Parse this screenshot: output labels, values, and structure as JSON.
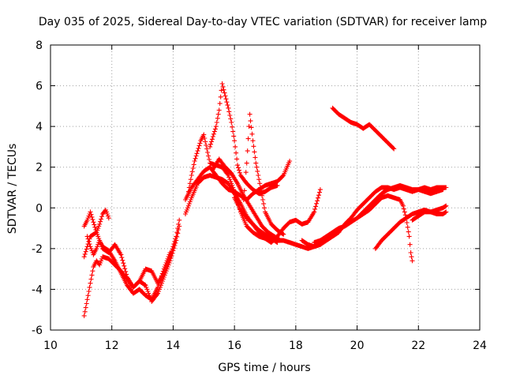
{
  "chart_data": {
    "type": "scatter",
    "title": "Day 035 of 2025, Sidereal Day-to-day VTEC variation (SDTVAR) for receiver lamp",
    "xlabel": "GPS time / hours",
    "ylabel": "SDTVAR / TECUs",
    "xlim": [
      10,
      24
    ],
    "ylim": [
      -6,
      8
    ],
    "x_ticks": [
      "10",
      "12",
      "14",
      "16",
      "18",
      "20",
      "22",
      "24"
    ],
    "y_ticks": [
      "-6",
      "-4",
      "-2",
      "0",
      "2",
      "4",
      "6",
      "8"
    ],
    "grid": true,
    "marker": "plus",
    "color": "#ff0000",
    "series": [
      {
        "name": "track-1",
        "points": [
          [
            11.1,
            -2.4
          ],
          [
            11.3,
            -1.4
          ],
          [
            11.5,
            -1.2
          ],
          [
            11.7,
            -2.0
          ],
          [
            11.9,
            -2.2
          ],
          [
            12.1,
            -1.8
          ],
          [
            12.3,
            -2.3
          ],
          [
            12.5,
            -3.4
          ],
          [
            12.7,
            -3.9
          ],
          [
            12.9,
            -3.6
          ],
          [
            13.1,
            -3.0
          ],
          [
            13.3,
            -3.1
          ],
          [
            13.5,
            -3.7
          ],
          [
            13.7,
            -3.2
          ],
          [
            13.9,
            -2.4
          ],
          [
            14.1,
            -1.4
          ],
          [
            14.2,
            -0.6
          ]
        ]
      },
      {
        "name": "track-2",
        "points": [
          [
            11.1,
            -5.3
          ],
          [
            11.2,
            -4.5
          ],
          [
            11.3,
            -3.7
          ],
          [
            11.4,
            -2.9
          ],
          [
            11.5,
            -2.6
          ],
          [
            11.6,
            -2.8
          ],
          [
            11.7,
            -2.4
          ],
          [
            11.9,
            -2.5
          ],
          [
            12.1,
            -2.8
          ],
          [
            12.3,
            -3.1
          ],
          [
            12.5,
            -3.5
          ],
          [
            12.7,
            -3.9
          ],
          [
            12.9,
            -3.6
          ],
          [
            13.1,
            -3.8
          ],
          [
            13.3,
            -4.6
          ],
          [
            13.5,
            -4.2
          ],
          [
            13.7,
            -3.4
          ],
          [
            13.9,
            -2.6
          ],
          [
            14.1,
            -1.6
          ],
          [
            14.2,
            -0.9
          ]
        ]
      },
      {
        "name": "track-3",
        "points": [
          [
            11.1,
            -0.9
          ],
          [
            11.2,
            -0.6
          ],
          [
            11.3,
            -0.2
          ],
          [
            11.4,
            -0.7
          ],
          [
            11.5,
            -1.2
          ],
          [
            11.6,
            -0.8
          ],
          [
            11.7,
            -0.3
          ],
          [
            11.8,
            -0.1
          ],
          [
            11.9,
            -0.5
          ]
        ]
      },
      {
        "name": "track-4",
        "points": [
          [
            11.2,
            -1.4
          ],
          [
            11.3,
            -1.9
          ],
          [
            11.4,
            -2.3
          ],
          [
            11.5,
            -2.0
          ],
          [
            11.6,
            -1.6
          ],
          [
            11.7,
            -1.9
          ],
          [
            11.9,
            -2.1
          ],
          [
            12.1,
            -2.6
          ],
          [
            12.3,
            -3.2
          ],
          [
            12.5,
            -3.8
          ],
          [
            12.7,
            -4.2
          ],
          [
            12.9,
            -4.0
          ],
          [
            13.1,
            -4.3
          ],
          [
            13.3,
            -4.5
          ],
          [
            13.5,
            -3.9
          ],
          [
            13.7,
            -3.0
          ],
          [
            13.9,
            -2.2
          ]
        ]
      },
      {
        "name": "track-5",
        "points": [
          [
            14.4,
            0.4
          ],
          [
            14.6,
            1.0
          ],
          [
            14.8,
            1.4
          ],
          [
            15.0,
            1.8
          ],
          [
            15.2,
            2.0
          ],
          [
            15.4,
            1.6
          ],
          [
            15.6,
            1.2
          ],
          [
            15.8,
            0.9
          ],
          [
            16.0,
            0.8
          ],
          [
            16.2,
            0.6
          ],
          [
            16.4,
            0.4
          ],
          [
            16.6,
            0.7
          ],
          [
            16.8,
            0.9
          ],
          [
            17.0,
            1.1
          ],
          [
            17.2,
            1.2
          ],
          [
            17.4,
            1.3
          ],
          [
            17.6,
            1.6
          ],
          [
            17.8,
            2.3
          ]
        ]
      },
      {
        "name": "track-6",
        "points": [
          [
            14.4,
            -0.3
          ],
          [
            14.6,
            0.5
          ],
          [
            14.8,
            1.2
          ],
          [
            15.0,
            1.5
          ],
          [
            15.2,
            1.6
          ],
          [
            15.4,
            1.5
          ],
          [
            15.6,
            1.4
          ],
          [
            15.8,
            1.2
          ],
          [
            16.0,
            0.7
          ],
          [
            16.2,
            0.2
          ],
          [
            16.4,
            -0.4
          ],
          [
            16.6,
            -0.8
          ],
          [
            16.8,
            -1.2
          ],
          [
            17.0,
            -1.5
          ],
          [
            17.2,
            -1.7
          ],
          [
            17.4,
            -1.4
          ],
          [
            17.6,
            -1.0
          ],
          [
            17.8,
            -0.7
          ],
          [
            18.0,
            -0.6
          ],
          [
            18.2,
            -0.8
          ],
          [
            18.4,
            -0.7
          ],
          [
            18.6,
            -0.2
          ],
          [
            18.8,
            0.9
          ]
        ]
      },
      {
        "name": "track-7",
        "points": [
          [
            14.5,
            0.8
          ],
          [
            14.6,
            1.6
          ],
          [
            14.7,
            2.3
          ],
          [
            14.8,
            2.8
          ],
          [
            14.9,
            3.3
          ],
          [
            15.0,
            3.6
          ],
          [
            15.1,
            2.9
          ],
          [
            15.2,
            2.2
          ],
          [
            15.4,
            2.1
          ],
          [
            15.6,
            2.0
          ],
          [
            15.8,
            1.6
          ],
          [
            16.0,
            0.8
          ],
          [
            16.2,
            -0.2
          ],
          [
            16.4,
            -0.9
          ],
          [
            16.6,
            -1.2
          ],
          [
            16.8,
            -1.4
          ],
          [
            17.0,
            -1.5
          ],
          [
            17.2,
            -1.6
          ],
          [
            17.4,
            -1.6
          ],
          [
            17.6,
            -1.6
          ],
          [
            17.8,
            -1.7
          ],
          [
            18.0,
            -1.8
          ],
          [
            18.2,
            -1.9
          ],
          [
            18.4,
            -2.0
          ],
          [
            18.6,
            -1.9
          ],
          [
            18.8,
            -1.8
          ]
        ]
      },
      {
        "name": "track-8",
        "points": [
          [
            15.2,
            3.0
          ],
          [
            15.4,
            4.0
          ],
          [
            15.5,
            4.8
          ],
          [
            15.6,
            6.1
          ],
          [
            15.7,
            5.5
          ],
          [
            15.8,
            4.9
          ],
          [
            15.9,
            4.2
          ],
          [
            16.0,
            3.3
          ],
          [
            16.1,
            2.1
          ],
          [
            16.2,
            1.6
          ],
          [
            16.4,
            1.2
          ],
          [
            16.6,
            0.9
          ],
          [
            16.8,
            0.7
          ],
          [
            17.0,
            0.8
          ],
          [
            17.2,
            1.0
          ],
          [
            17.4,
            1.1
          ]
        ]
      },
      {
        "name": "track-9",
        "points": [
          [
            15.3,
            1.9
          ],
          [
            15.5,
            2.4
          ],
          [
            15.7,
            2.0
          ],
          [
            15.9,
            1.7
          ],
          [
            16.1,
            1.2
          ],
          [
            16.3,
            0.6
          ],
          [
            16.5,
            0.1
          ],
          [
            16.7,
            -0.4
          ],
          [
            16.9,
            -0.9
          ],
          [
            17.1,
            -1.2
          ],
          [
            17.3,
            -1.4
          ],
          [
            17.5,
            -1.6
          ]
        ]
      },
      {
        "name": "track-10",
        "points": [
          [
            16.3,
            0.4
          ],
          [
            16.4,
            2.2
          ],
          [
            16.5,
            4.6
          ],
          [
            16.6,
            3.3
          ],
          [
            16.7,
            2.2
          ],
          [
            16.8,
            1.4
          ],
          [
            16.9,
            0.6
          ],
          [
            17.0,
            -0.2
          ],
          [
            17.2,
            -0.8
          ],
          [
            17.4,
            -1.1
          ],
          [
            17.6,
            -1.3
          ]
        ]
      },
      {
        "name": "track-11",
        "points": [
          [
            16.0,
            0.5
          ],
          [
            16.2,
            -0.1
          ],
          [
            16.4,
            -0.5
          ],
          [
            16.6,
            -0.8
          ],
          [
            16.8,
            -1.1
          ],
          [
            17.0,
            -1.3
          ],
          [
            17.2,
            -1.5
          ],
          [
            17.4,
            -1.7
          ]
        ]
      },
      {
        "name": "track-12",
        "points": [
          [
            18.2,
            -1.6
          ],
          [
            18.4,
            -1.8
          ],
          [
            18.6,
            -1.9
          ],
          [
            18.8,
            -1.8
          ],
          [
            19.0,
            -1.6
          ],
          [
            19.2,
            -1.4
          ],
          [
            19.4,
            -1.2
          ],
          [
            19.6,
            -0.8
          ],
          [
            19.8,
            -0.5
          ],
          [
            20.0,
            -0.1
          ],
          [
            20.2,
            0.2
          ],
          [
            20.4,
            0.5
          ],
          [
            20.6,
            0.8
          ],
          [
            20.8,
            1.0
          ],
          [
            21.0,
            1.0
          ],
          [
            21.2,
            0.9
          ],
          [
            21.4,
            1.0
          ],
          [
            21.6,
            0.9
          ],
          [
            21.8,
            0.8
          ],
          [
            22.0,
            0.9
          ],
          [
            22.2,
            0.8
          ],
          [
            22.4,
            0.7
          ],
          [
            22.6,
            0.8
          ],
          [
            22.8,
            0.9
          ]
        ]
      },
      {
        "name": "track-13",
        "points": [
          [
            18.6,
            -1.7
          ],
          [
            18.8,
            -1.6
          ],
          [
            19.0,
            -1.4
          ],
          [
            19.2,
            -1.2
          ],
          [
            19.4,
            -1.0
          ],
          [
            19.6,
            -0.9
          ],
          [
            19.8,
            -0.7
          ],
          [
            20.0,
            -0.5
          ],
          [
            20.2,
            -0.3
          ],
          [
            20.4,
            -0.1
          ],
          [
            20.6,
            0.2
          ],
          [
            20.8,
            0.5
          ],
          [
            21.0,
            0.6
          ],
          [
            21.2,
            0.5
          ],
          [
            21.4,
            0.4
          ],
          [
            21.5,
            0.1
          ],
          [
            21.6,
            -0.5
          ],
          [
            21.7,
            -1.4
          ],
          [
            21.75,
            -2.2
          ],
          [
            21.8,
            -2.6
          ]
        ]
      },
      {
        "name": "track-14",
        "points": [
          [
            20.0,
            -0.5
          ],
          [
            20.2,
            -0.2
          ],
          [
            20.4,
            0.1
          ],
          [
            20.6,
            0.4
          ],
          [
            20.8,
            0.7
          ],
          [
            21.0,
            0.9
          ],
          [
            21.2,
            1.0
          ],
          [
            21.4,
            1.1
          ],
          [
            21.6,
            1.0
          ],
          [
            21.8,
            0.9
          ],
          [
            22.0,
            0.9
          ],
          [
            22.2,
            1.0
          ],
          [
            22.4,
            0.9
          ],
          [
            22.6,
            1.0
          ],
          [
            22.9,
            1.0
          ]
        ]
      },
      {
        "name": "track-15",
        "points": [
          [
            19.2,
            4.9
          ],
          [
            19.4,
            4.6
          ],
          [
            19.6,
            4.4
          ],
          [
            19.8,
            4.2
          ],
          [
            20.0,
            4.1
          ],
          [
            20.2,
            3.9
          ],
          [
            20.4,
            4.1
          ],
          [
            20.6,
            3.8
          ],
          [
            20.8,
            3.5
          ],
          [
            21.0,
            3.2
          ],
          [
            21.2,
            2.9
          ]
        ]
      },
      {
        "name": "track-16",
        "points": [
          [
            20.6,
            -2.0
          ],
          [
            20.8,
            -1.6
          ],
          [
            21.0,
            -1.3
          ],
          [
            21.2,
            -1.0
          ],
          [
            21.4,
            -0.7
          ],
          [
            21.6,
            -0.5
          ],
          [
            21.8,
            -0.3
          ],
          [
            22.0,
            -0.2
          ],
          [
            22.2,
            -0.1
          ],
          [
            22.4,
            -0.2
          ],
          [
            22.6,
            -0.1
          ],
          [
            22.8,
            0.0
          ],
          [
            22.9,
            0.1
          ]
        ]
      },
      {
        "name": "track-17",
        "points": [
          [
            21.8,
            -0.6
          ],
          [
            22.0,
            -0.4
          ],
          [
            22.2,
            -0.2
          ],
          [
            22.4,
            -0.2
          ],
          [
            22.6,
            -0.3
          ],
          [
            22.8,
            -0.3
          ],
          [
            22.9,
            -0.2
          ]
        ]
      }
    ]
  }
}
